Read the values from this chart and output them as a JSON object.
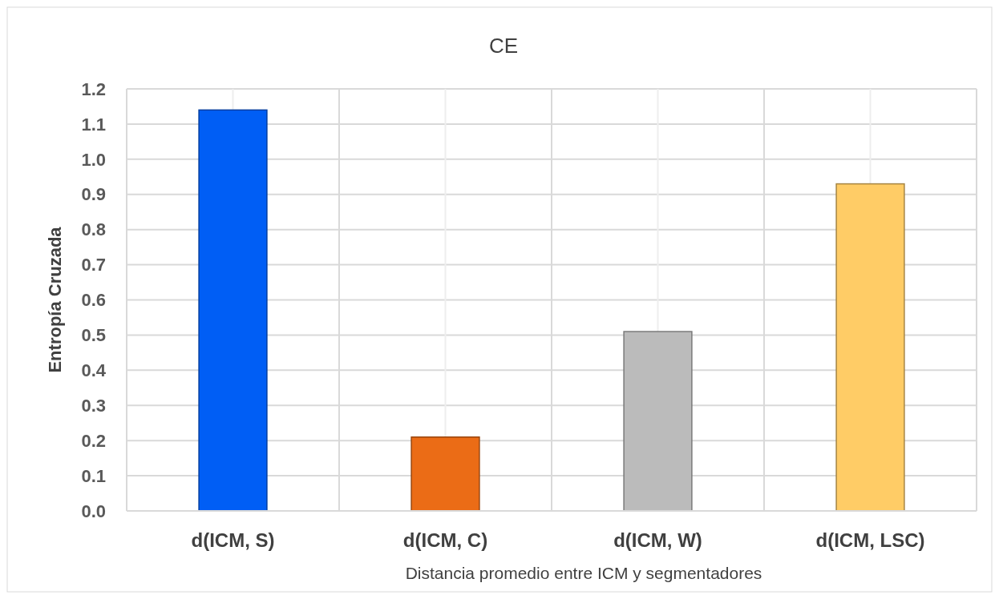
{
  "chart_data": {
    "type": "bar",
    "title": "CE",
    "xlabel": "Distancia promedio entre ICM y segmentadores",
    "ylabel": "Entropía Cruzada",
    "categories": [
      "d(ICM, S)",
      "d(ICM, C)",
      "d(ICM, W)",
      "d(ICM, LSC)"
    ],
    "values": [
      1.14,
      0.21,
      0.51,
      0.93
    ],
    "colors": [
      "#005ef5",
      "#eb6c16",
      "#bbbbbb",
      "#ffcc66"
    ],
    "ylim": [
      0,
      1.2
    ],
    "yticks": [
      {
        "value": 0,
        "label": "0.0"
      },
      {
        "value": 0.1,
        "label": "0.1"
      },
      {
        "value": 0.2,
        "label": "0.2"
      },
      {
        "value": 0.3,
        "label": "0.3"
      },
      {
        "value": 0.4,
        "label": "0.4"
      },
      {
        "value": 0.5,
        "label": "0.5"
      },
      {
        "value": 0.6,
        "label": "0.6"
      },
      {
        "value": 0.7,
        "label": "0.7"
      },
      {
        "value": 0.8,
        "label": "0.8"
      },
      {
        "value": 0.9,
        "label": "0.9"
      },
      {
        "value": 1,
        "label": "1.0"
      },
      {
        "value": 1.1,
        "label": "1.1"
      },
      {
        "value": 1.2,
        "label": "1.2"
      }
    ],
    "grid": true
  }
}
